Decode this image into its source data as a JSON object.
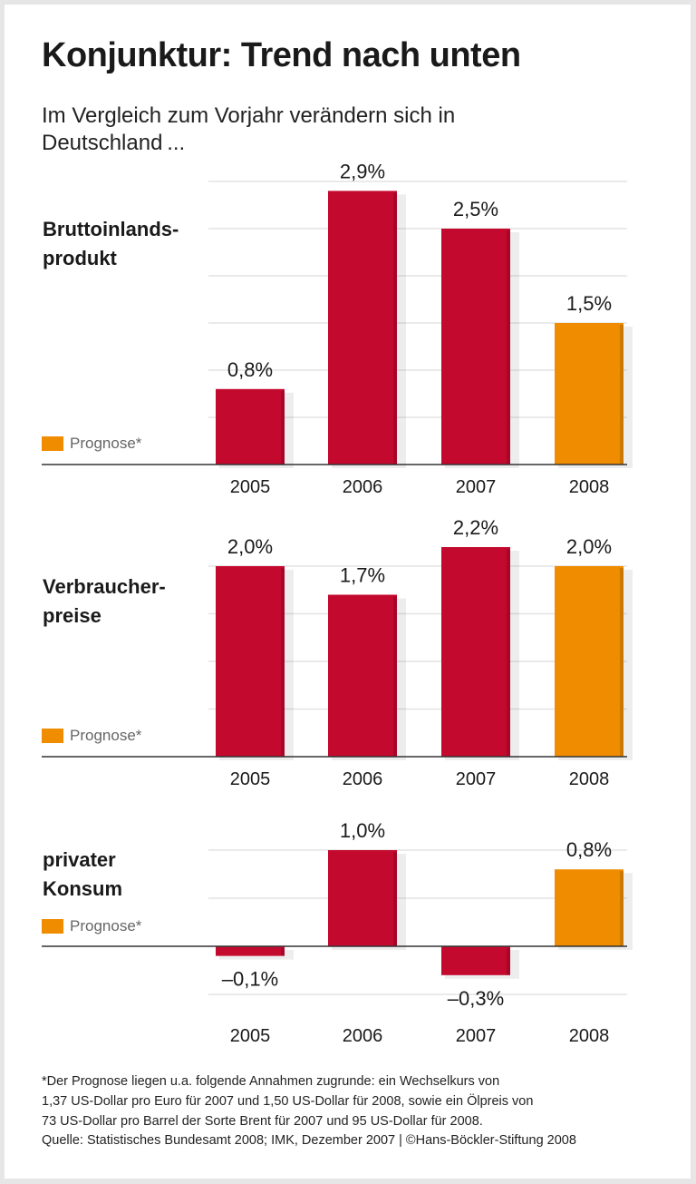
{
  "title": "Konjunktur: Trend nach unten",
  "subtitle_lines": [
    "Im Vergleich zum Vorjahr verändern sich in",
    "Deutschland ..."
  ],
  "legend_label": "Prognose*",
  "colors": {
    "actual": "#c4092f",
    "forecast": "#f08c00",
    "grid": "#e4e4e4",
    "axis": "#333333"
  },
  "footnote_lines": [
    "*Der Prognose liegen u.a. folgende Annahmen zugrunde: ein Wechselkurs von",
    "1,37 US-Dollar pro Euro für 2007 und 1,50 US-Dollar für 2008, sowie ein Ölpreis von",
    "73 US-Dollar pro Barrel der Sorte Brent für 2007 und 95 US-Dollar für 2008.",
    "Quelle: Statistisches Bundesamt 2008; IMK, Dezember 2007 | ©Hans-Böckler-Stiftung 2008"
  ],
  "chart_data": [
    {
      "type": "bar",
      "panel_label_lines": [
        "Bruttoinlands-",
        "produkt"
      ],
      "categories": [
        "2005",
        "2006",
        "2007",
        "2008"
      ],
      "values": [
        0.8,
        2.9,
        2.5,
        1.5
      ],
      "value_labels": [
        "0,8%",
        "2,9%",
        "2,5%",
        "1,5%"
      ],
      "forecast": [
        false,
        false,
        false,
        true
      ],
      "ylim": [
        0,
        3.0
      ],
      "grid": true,
      "unit": "%"
    },
    {
      "type": "bar",
      "panel_label_lines": [
        "Verbraucher-",
        "preise"
      ],
      "categories": [
        "2005",
        "2006",
        "2007",
        "2008"
      ],
      "values": [
        2.0,
        1.7,
        2.2,
        2.0
      ],
      "value_labels": [
        "2,0%",
        "1,7%",
        "2,2%",
        "2,0%"
      ],
      "forecast": [
        false,
        false,
        false,
        true
      ],
      "ylim": [
        0,
        2.0
      ],
      "grid": true,
      "unit": "%"
    },
    {
      "type": "bar",
      "panel_label_lines": [
        "privater",
        "Konsum"
      ],
      "categories": [
        "2005",
        "2006",
        "2007",
        "2008"
      ],
      "values": [
        -0.1,
        1.0,
        -0.3,
        0.8
      ],
      "value_labels": [
        "–0,1%",
        "1,0%",
        "–0,3%",
        "0,8%"
      ],
      "forecast": [
        false,
        false,
        false,
        true
      ],
      "ylim": [
        -0.5,
        1.0
      ],
      "grid": true,
      "unit": "%"
    }
  ]
}
